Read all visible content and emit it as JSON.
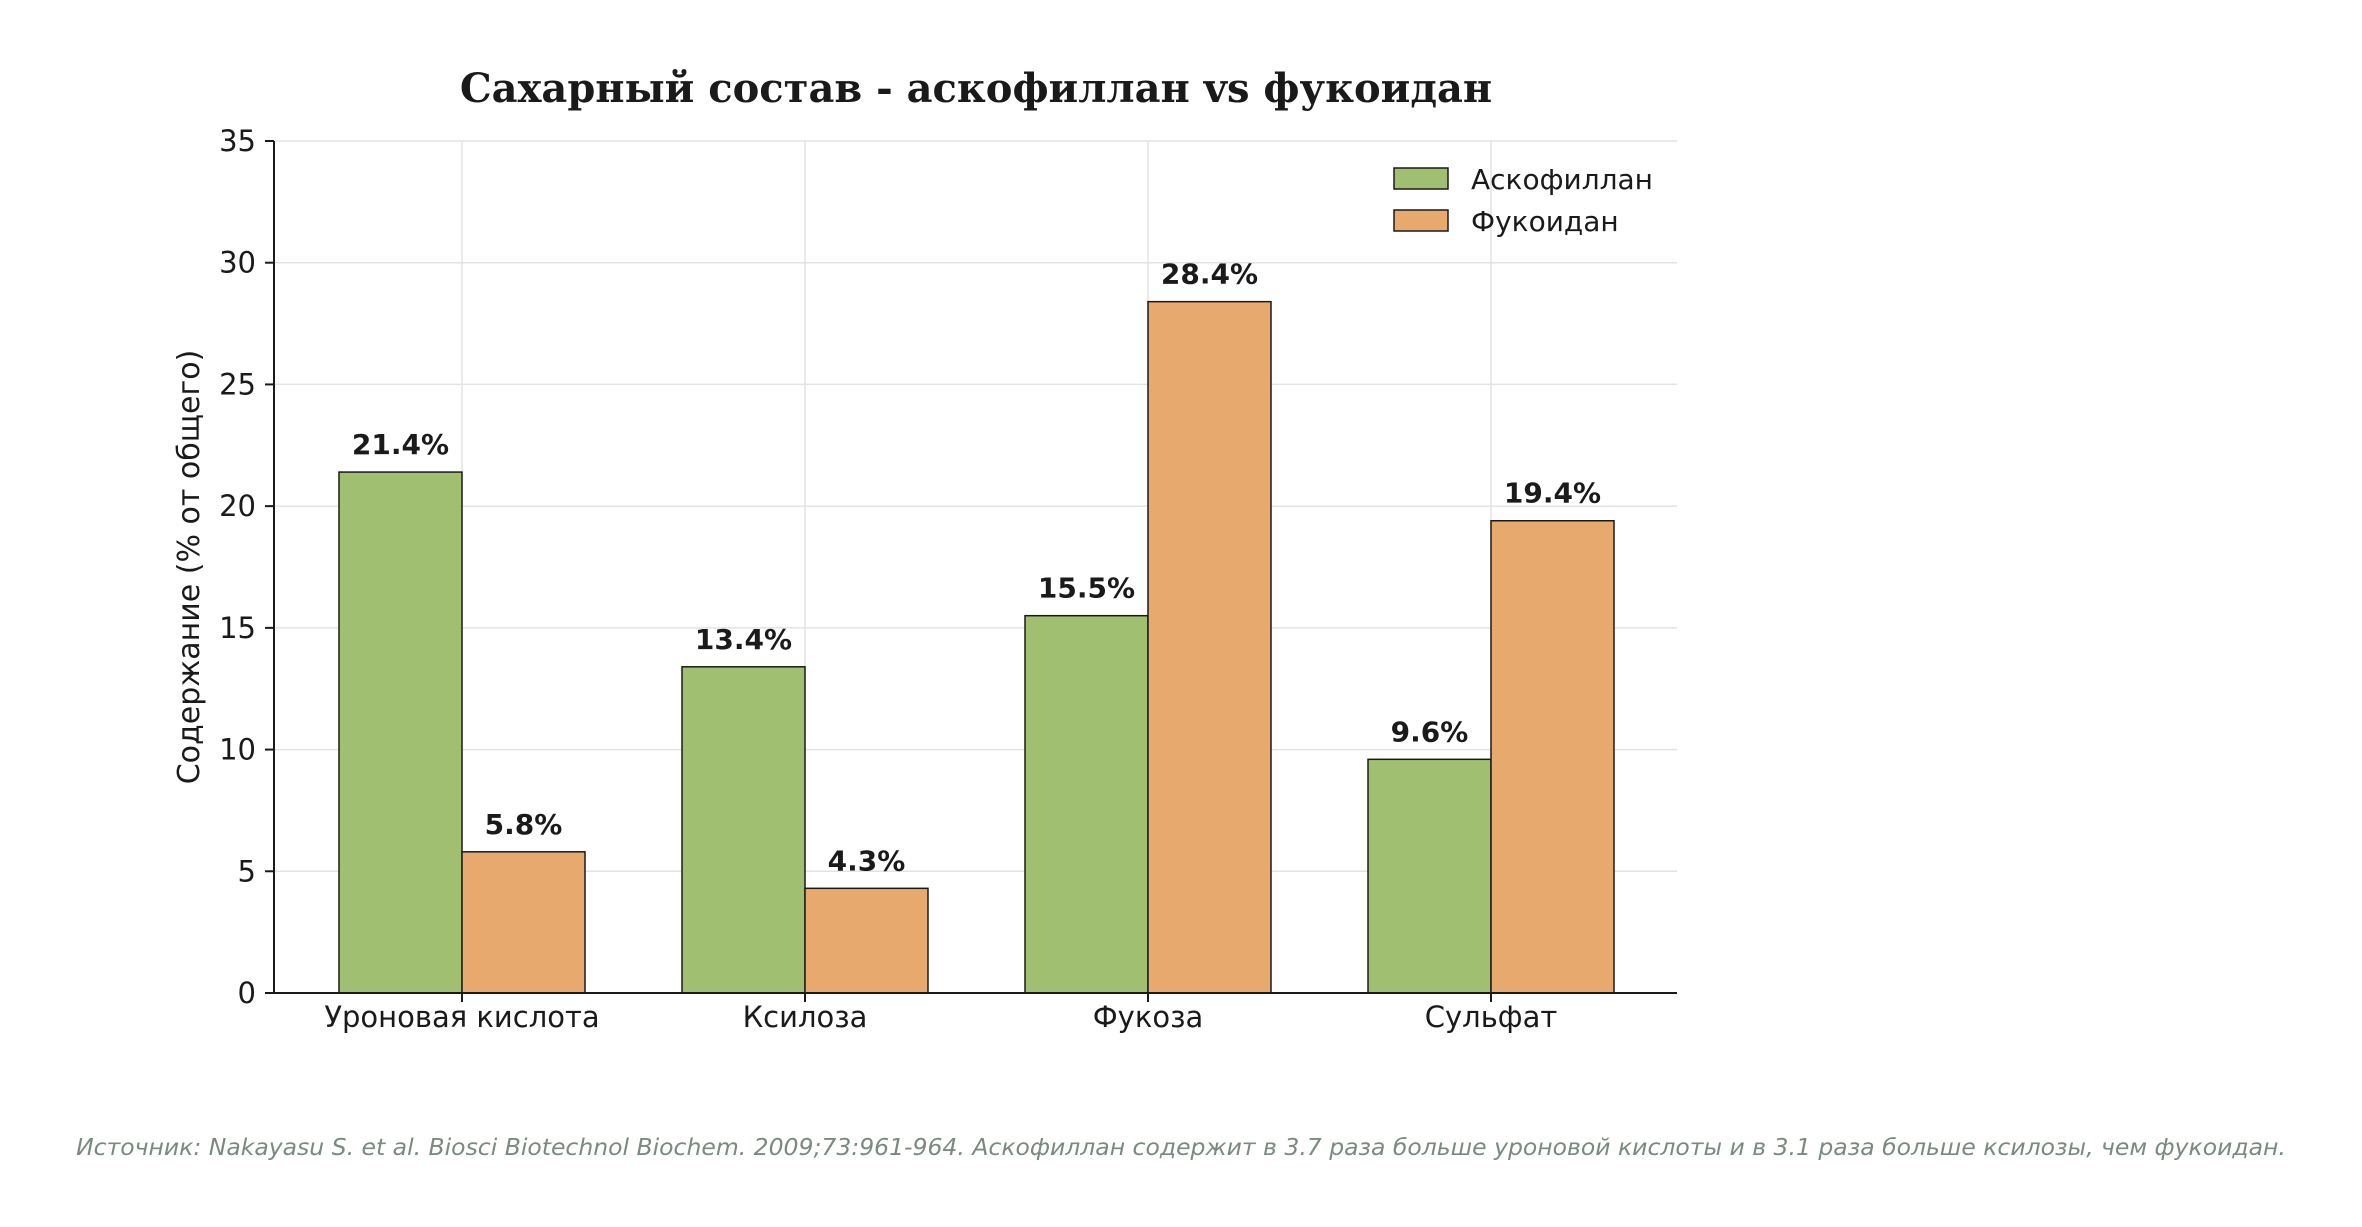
{
  "chart_data": {
    "type": "bar",
    "title": "Сахарный состав - аскофиллан vs фукоидан",
    "xlabel": "",
    "ylabel": "Содержание (% от общего)",
    "categories": [
      "Уроновая кислота",
      "Ксилоза",
      "Фукоза",
      "Сульфат"
    ],
    "series": [
      {
        "name": "Аскофиллан",
        "values": [
          21.4,
          13.4,
          15.5,
          9.6
        ],
        "color": "#a0bf70",
        "labels": [
          "21.4%",
          "13.4%",
          "15.5%",
          "9.6%"
        ]
      },
      {
        "name": "Фукоидан",
        "values": [
          5.8,
          4.3,
          28.4,
          19.4
        ],
        "color": "#e8a96e",
        "labels": [
          "5.8%",
          "4.3%",
          "28.4%",
          "19.4%"
        ]
      }
    ],
    "ylim": [
      0,
      35
    ],
    "yticks": [
      "0",
      "5",
      "10",
      "15",
      "20",
      "25",
      "30",
      "35"
    ],
    "grid": true,
    "legend": "top-right"
  },
  "footer": {
    "source": "Источник: Nakayasu S. et al. Biosci Biotechnol Biochem. 2009;73:961-964. Аскофиллан содержит в 3.7 раза больше уроновой кислоты и в 3.1 раза больше ксилозы, чем фукоидан."
  }
}
